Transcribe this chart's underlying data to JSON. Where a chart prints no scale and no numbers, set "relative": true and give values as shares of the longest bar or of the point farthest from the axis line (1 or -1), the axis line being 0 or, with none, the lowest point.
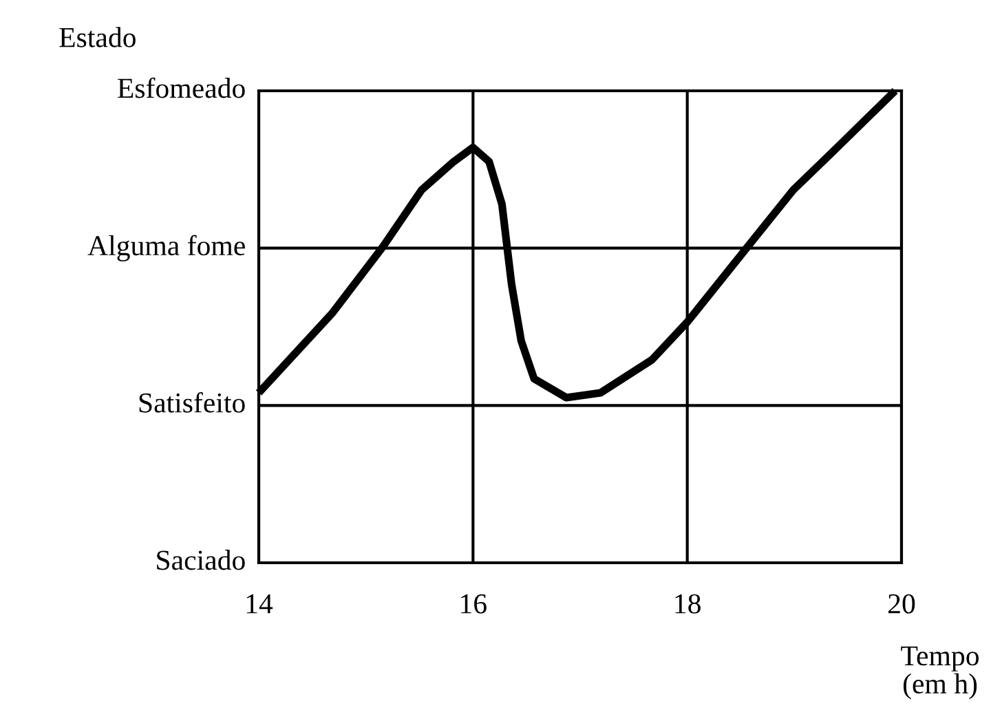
{
  "chart_data": {
    "type": "line",
    "xlabel": "Tempo\n(em h)",
    "ylabel": "Estado",
    "x": [
      14.0,
      14.69,
      15.16,
      15.52,
      15.82,
      16.0,
      16.15,
      16.27,
      16.36,
      16.45,
      16.57,
      16.87,
      17.19,
      17.67,
      18.0,
      18.6,
      18.99,
      19.4,
      19.94
    ],
    "series": [
      {
        "color": "#000000",
        "values": [
          0.36,
          0.53,
          0.67,
          0.79,
          0.85,
          0.88,
          0.85,
          0.76,
          0.59,
          0.47,
          0.39,
          0.35,
          0.36,
          0.43,
          0.51,
          0.68,
          0.79,
          0.88,
          1.0
        ]
      }
    ],
    "relative": true,
    "annotations": [
      "Saciado",
      "Satisfeito",
      "Alguma fome",
      "Esfomeado"
    ],
    "xlim": [
      14,
      20
    ],
    "xticks": [
      14,
      16,
      18,
      20
    ],
    "grid": true,
    "line_style": "solid",
    "marker": "none"
  }
}
